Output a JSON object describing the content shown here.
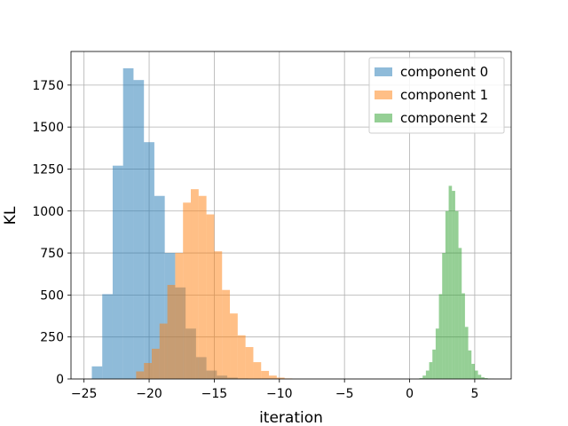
{
  "chart_data": {
    "type": "bar",
    "subtype": "histogram",
    "title": "",
    "xlabel": "iteration",
    "ylabel": "KL",
    "xlim": [
      -26,
      7.8
    ],
    "ylim": [
      0,
      1950
    ],
    "xticks": [
      -25,
      -20,
      -15,
      -10,
      -5,
      0,
      5
    ],
    "xtick_labels": [
      "−25",
      "−20",
      "−15",
      "−10",
      "−5",
      "0",
      "5"
    ],
    "yticks": [
      0,
      250,
      500,
      750,
      1000,
      1250,
      1500,
      1750
    ],
    "ytick_labels": [
      "0",
      "250",
      "500",
      "750",
      "1000",
      "1250",
      "1500",
      "1750"
    ],
    "grid": true,
    "legend_position": "top-right",
    "series": [
      {
        "name": "component 0",
        "color": "#1f77b4",
        "alpha": 0.5,
        "bin_width": 0.8,
        "bin_starts": [
          -24.4,
          -23.6,
          -22.8,
          -22.0,
          -21.2,
          -20.4,
          -19.6,
          -18.8,
          -18.0,
          -17.2,
          -16.4,
          -15.6,
          -14.8,
          -14.0,
          -13.2
        ],
        "counts": [
          75,
          505,
          1270,
          1850,
          1780,
          1410,
          1090,
          750,
          545,
          300,
          130,
          50,
          20,
          8,
          3
        ]
      },
      {
        "name": "component 1",
        "color": "#ff7f0e",
        "alpha": 0.5,
        "bin_width": 0.6,
        "bin_starts": [
          -21.0,
          -20.4,
          -19.8,
          -19.2,
          -18.6,
          -18.0,
          -17.4,
          -16.8,
          -16.2,
          -15.6,
          -15.0,
          -14.4,
          -13.8,
          -13.2,
          -12.6,
          -12.0,
          -11.4,
          -10.8,
          -10.2,
          -9.6
        ],
        "counts": [
          45,
          95,
          180,
          330,
          560,
          750,
          1050,
          1130,
          1090,
          980,
          760,
          530,
          390,
          260,
          190,
          100,
          48,
          20,
          8,
          3
        ]
      },
      {
        "name": "component 2",
        "color": "#2ca02c",
        "alpha": 0.5,
        "bin_width": 0.25,
        "bin_starts": [
          0.75,
          1.0,
          1.25,
          1.5,
          1.75,
          2.0,
          2.25,
          2.5,
          2.75,
          3.0,
          3.25,
          3.5,
          3.75,
          4.0,
          4.25,
          4.5,
          4.75,
          5.0,
          5.25,
          5.5,
          5.75,
          6.0,
          6.25
        ],
        "counts": [
          5,
          20,
          50,
          100,
          175,
          300,
          505,
          750,
          1000,
          1150,
          1120,
          1000,
          780,
          510,
          310,
          170,
          90,
          50,
          25,
          10,
          5,
          2,
          1
        ]
      }
    ]
  }
}
